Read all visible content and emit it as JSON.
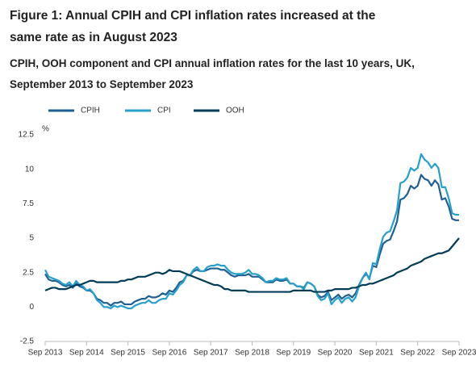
{
  "chart_data": {
    "type": "line",
    "title": "Figure 1: Annual CPIH and CPI inflation rates increased at the same rate as in August 2023",
    "subtitle": "CPIH, OOH component and CPI annual inflation rates for the last 10 years, UK, September 2013 to September 2023",
    "y_unit": "%",
    "categories": [
      "Sep 2013",
      null,
      null,
      null,
      null,
      null,
      null,
      null,
      null,
      null,
      null,
      null,
      "Sep 2014",
      null,
      null,
      null,
      null,
      null,
      null,
      null,
      null,
      null,
      null,
      null,
      "Sep 2015",
      null,
      null,
      null,
      null,
      null,
      null,
      null,
      null,
      null,
      null,
      null,
      "Sep 2016",
      null,
      null,
      null,
      null,
      null,
      null,
      null,
      null,
      null,
      null,
      null,
      "Sep 2017",
      null,
      null,
      null,
      null,
      null,
      null,
      null,
      null,
      null,
      null,
      null,
      "Sep 2018",
      null,
      null,
      null,
      null,
      null,
      null,
      null,
      null,
      null,
      null,
      null,
      "Sep 2019",
      null,
      null,
      null,
      null,
      null,
      null,
      null,
      null,
      null,
      null,
      null,
      "Sep 2020",
      null,
      null,
      null,
      null,
      null,
      null,
      null,
      null,
      null,
      null,
      null,
      "Sep 2021",
      null,
      null,
      null,
      null,
      null,
      null,
      null,
      null,
      null,
      null,
      null,
      "Sep 2022",
      null,
      null,
      null,
      null,
      null,
      null,
      null,
      null,
      null,
      null,
      null,
      "Sep 2023"
    ],
    "series": [
      {
        "name": "CPIH",
        "color": "#206095",
        "values": [
          2.4,
          2.0,
          1.9,
          1.9,
          1.8,
          1.6,
          1.5,
          1.6,
          1.4,
          1.7,
          1.5,
          1.4,
          1.2,
          1.2,
          1.0,
          0.6,
          0.5,
          0.3,
          0.3,
          0.1,
          0.3,
          0.3,
          0.4,
          0.2,
          0.2,
          0.2,
          0.4,
          0.5,
          0.6,
          0.6,
          0.8,
          0.7,
          0.7,
          0.8,
          1.0,
          0.9,
          1.2,
          1.1,
          1.4,
          1.8,
          1.9,
          2.3,
          2.3,
          2.6,
          2.7,
          2.6,
          2.6,
          2.7,
          2.8,
          2.8,
          2.8,
          2.7,
          2.7,
          2.5,
          2.3,
          2.2,
          2.3,
          2.3,
          2.3,
          2.4,
          2.2,
          2.2,
          2.2,
          2.0,
          1.8,
          1.8,
          1.8,
          2.0,
          1.9,
          1.9,
          2.0,
          1.7,
          1.7,
          1.5,
          1.5,
          1.4,
          1.8,
          1.7,
          1.5,
          0.9,
          0.7,
          0.8,
          1.1,
          0.5,
          0.7,
          0.9,
          0.6,
          0.8,
          0.9,
          0.7,
          1.0,
          1.6,
          2.1,
          2.4,
          2.1,
          3.0,
          2.9,
          3.8,
          4.6,
          4.8,
          4.9,
          5.5,
          6.2,
          7.8,
          7.9,
          8.2,
          8.8,
          8.6,
          8.8,
          9.6,
          9.3,
          9.2,
          8.8,
          9.2,
          8.9,
          7.8,
          7.9,
          7.3,
          6.4,
          6.3,
          6.3
        ]
      },
      {
        "name": "CPI",
        "color": "#27a0cc",
        "values": [
          2.7,
          2.2,
          2.1,
          2.0,
          1.9,
          1.7,
          1.6,
          1.8,
          1.5,
          1.9,
          1.6,
          1.5,
          1.2,
          1.3,
          1.0,
          0.5,
          0.3,
          0.0,
          0.0,
          -0.1,
          0.1,
          0.0,
          0.1,
          0.0,
          -0.1,
          -0.1,
          0.1,
          0.2,
          0.3,
          0.3,
          0.5,
          0.3,
          0.3,
          0.5,
          0.6,
          0.6,
          1.0,
          0.9,
          1.2,
          1.6,
          1.8,
          2.3,
          2.3,
          2.7,
          2.9,
          2.6,
          2.6,
          2.9,
          3.0,
          3.0,
          3.1,
          3.0,
          3.0,
          2.7,
          2.5,
          2.4,
          2.4,
          2.4,
          2.5,
          2.7,
          2.4,
          2.4,
          2.3,
          2.1,
          1.8,
          1.9,
          1.9,
          2.1,
          2.0,
          2.0,
          2.1,
          1.7,
          1.7,
          1.5,
          1.5,
          1.3,
          1.8,
          1.7,
          1.5,
          0.8,
          0.5,
          0.6,
          1.0,
          0.2,
          0.5,
          0.7,
          0.3,
          0.6,
          0.7,
          0.4,
          0.7,
          1.5,
          2.1,
          2.5,
          2.0,
          3.2,
          3.1,
          4.2,
          5.1,
          5.4,
          5.5,
          6.2,
          7.0,
          9.0,
          9.1,
          9.4,
          10.1,
          9.9,
          10.1,
          11.1,
          10.7,
          10.5,
          10.1,
          10.4,
          10.1,
          8.7,
          8.7,
          7.9,
          6.8,
          6.7,
          6.7
        ]
      },
      {
        "name": "OOH",
        "color": "#003c57",
        "values": [
          1.2,
          1.3,
          1.4,
          1.4,
          1.3,
          1.3,
          1.3,
          1.4,
          1.5,
          1.6,
          1.6,
          1.7,
          1.8,
          1.9,
          1.9,
          1.8,
          1.8,
          1.8,
          1.8,
          1.8,
          1.8,
          1.8,
          1.9,
          1.9,
          2.0,
          2.0,
          2.1,
          2.2,
          2.2,
          2.2,
          2.3,
          2.4,
          2.5,
          2.5,
          2.4,
          2.5,
          2.7,
          2.6,
          2.6,
          2.6,
          2.5,
          2.4,
          2.3,
          2.2,
          2.1,
          2.0,
          1.9,
          1.8,
          1.7,
          1.6,
          1.6,
          1.5,
          1.3,
          1.3,
          1.2,
          1.2,
          1.2,
          1.2,
          1.2,
          1.1,
          1.1,
          1.1,
          1.1,
          1.1,
          1.1,
          1.1,
          1.1,
          1.1,
          1.1,
          1.1,
          1.1,
          1.1,
          1.2,
          1.2,
          1.2,
          1.2,
          1.2,
          1.2,
          1.1,
          1.1,
          1.1,
          1.1,
          1.2,
          1.2,
          1.3,
          1.3,
          1.3,
          1.3,
          1.3,
          1.4,
          1.4,
          1.5,
          1.6,
          1.6,
          1.7,
          1.7,
          1.8,
          1.9,
          2.0,
          2.1,
          2.2,
          2.3,
          2.5,
          2.6,
          2.7,
          2.8,
          3.0,
          3.1,
          3.2,
          3.3,
          3.5,
          3.6,
          3.7,
          3.8,
          3.9,
          3.9,
          4.0,
          4.1,
          4.4,
          4.7,
          5.0
        ]
      }
    ],
    "ylim": [
      -2.5,
      12.5
    ],
    "yticks": [
      12.5,
      10,
      7.5,
      5,
      2.5,
      0,
      -2.5
    ],
    "grid": false
  }
}
